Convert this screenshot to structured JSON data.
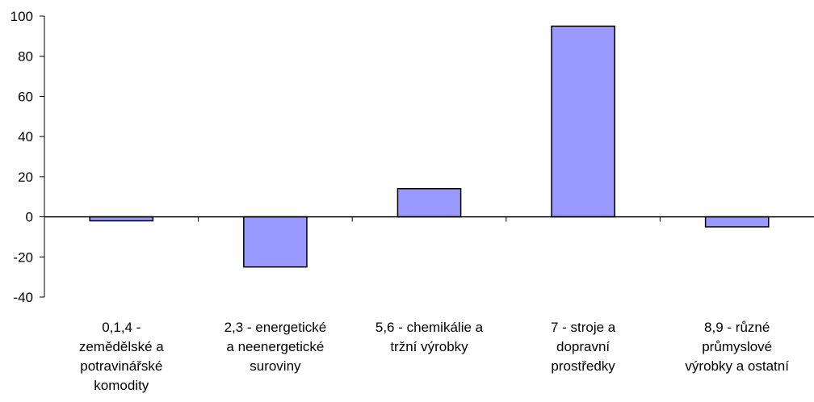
{
  "chart_data": {
    "type": "bar",
    "title": "",
    "xlabel": "",
    "ylabel": "",
    "ylim": [
      -40,
      100
    ],
    "yticks": [
      100,
      80,
      60,
      40,
      20,
      0,
      -20,
      -40
    ],
    "grid": false,
    "legend": "none",
    "categories": [
      "0,1,4 -\nzemědělské a\npotravinářské\nkomodity",
      "2,3 - energetické\na neenergetické\nsuroviny",
      "5,6 - chemikálie a\ntržní výrobky",
      "7 - stroje a\ndopravní\nprostředky",
      "8,9 - různé\nprůmyslové\nvýrobky a ostatní"
    ],
    "values": [
      -2,
      -25,
      14,
      95,
      -5
    ],
    "colors": {
      "bar_fill": "#9999ff",
      "bar_stroke": "#000000",
      "axis": "#000000"
    }
  }
}
